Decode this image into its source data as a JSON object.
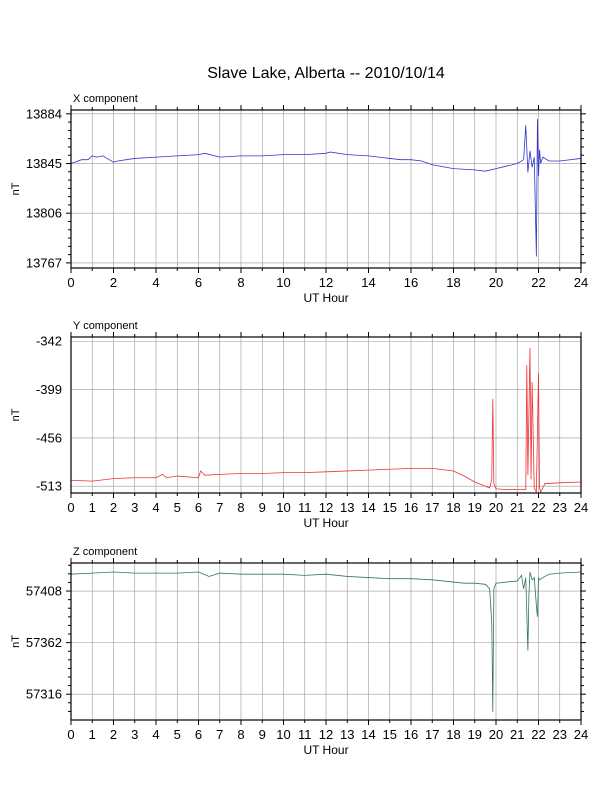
{
  "title": "Slave Lake, Alberta -- 2010/10/14",
  "chart_data": [
    {
      "type": "line",
      "title": "X component",
      "xlabel": "UT Hour",
      "ylabel": "nT",
      "xlim": [
        0,
        24
      ],
      "ylim": [
        13763,
        13887
      ],
      "xticks": [
        0,
        2,
        4,
        6,
        8,
        10,
        12,
        14,
        16,
        18,
        20,
        22,
        24
      ],
      "yticks": [
        13767,
        13806,
        13845,
        13884
      ],
      "grid": true,
      "series": [
        {
          "color": "#3333cc",
          "x": [
            0,
            0.5,
            0.8,
            1.0,
            1.2,
            1.5,
            1.8,
            2.0,
            2.2,
            3.0,
            4.0,
            5.0,
            6.0,
            6.3,
            7.0,
            8.0,
            9.0,
            10.0,
            11.0,
            12.0,
            12.2,
            13.0,
            14.0,
            15.0,
            15.5,
            16.0,
            16.5,
            17.0,
            18.0,
            19.0,
            19.5,
            20.0,
            20.5,
            21.0,
            21.3,
            21.4,
            21.5,
            21.6,
            21.7,
            21.8,
            21.9,
            21.95,
            22.0,
            22.05,
            22.1,
            22.2,
            22.5,
            23.0,
            24.0
          ],
          "values": [
            13845,
            13848,
            13848,
            13851,
            13850,
            13851,
            13848,
            13846,
            13847,
            13849,
            13850,
            13851,
            13852,
            13853,
            13850,
            13851,
            13851,
            13852,
            13852,
            13853,
            13854,
            13852,
            13851,
            13849,
            13848,
            13848,
            13847,
            13844,
            13841,
            13840,
            13839,
            13841,
            13843,
            13845,
            13848,
            13875,
            13838,
            13855,
            13842,
            13850,
            13772,
            13880,
            13835,
            13856,
            13845,
            13850,
            13847,
            13847,
            13849
          ]
        }
      ]
    },
    {
      "type": "line",
      "title": "Y component",
      "xlabel": "UT Hour",
      "ylabel": "nT",
      "xlim": [
        0,
        24
      ],
      "ylim": [
        -521,
        -337
      ],
      "xticks": [
        0,
        1,
        2,
        3,
        4,
        5,
        6,
        7,
        8,
        9,
        10,
        11,
        12,
        13,
        14,
        15,
        16,
        17,
        18,
        19,
        20,
        21,
        22,
        23,
        24
      ],
      "yticks": [
        -342,
        -399,
        -456,
        -513
      ],
      "grid": true,
      "series": [
        {
          "color": "#ee3333",
          "x": [
            0,
            1.0,
            2.0,
            3.0,
            4.0,
            4.3,
            4.5,
            5.0,
            6.0,
            6.1,
            6.3,
            7.0,
            8.0,
            9.0,
            10.0,
            11.0,
            12.0,
            13.0,
            14.0,
            15.0,
            16.0,
            17.0,
            18.0,
            18.5,
            19.0,
            19.5,
            19.7,
            19.8,
            19.85,
            19.9,
            20.0,
            20.5,
            21.0,
            21.4,
            21.45,
            21.5,
            21.6,
            21.65,
            21.7,
            21.8,
            21.9,
            22.0,
            22.05,
            22.1,
            22.3,
            23.0,
            24.0
          ],
          "values": [
            -506,
            -507,
            -504,
            -503,
            -503,
            -499,
            -503,
            -501,
            -503,
            -495,
            -500,
            -499,
            -498,
            -498,
            -497,
            -497,
            -496,
            -495,
            -494,
            -493,
            -492,
            -492,
            -495,
            -501,
            -508,
            -513,
            -515,
            -505,
            -410,
            -510,
            -516,
            -517,
            -517,
            -517,
            -370,
            -500,
            -350,
            -505,
            -390,
            -515,
            -520,
            -380,
            -515,
            -520,
            -510,
            -509,
            -508
          ]
        }
      ]
    },
    {
      "type": "line",
      "title": "Z component",
      "xlabel": "UT Hour",
      "ylabel": "nT",
      "xlim": [
        0,
        24
      ],
      "ylim": [
        57293,
        57433
      ],
      "xticks": [
        0,
        1,
        2,
        3,
        4,
        5,
        6,
        7,
        8,
        9,
        10,
        11,
        12,
        13,
        14,
        15,
        16,
        17,
        18,
        19,
        20,
        21,
        22,
        23,
        24
      ],
      "yticks": [
        57316,
        57362,
        57408
      ],
      "grid": true,
      "series": [
        {
          "color": "#337755",
          "x": [
            0,
            1.0,
            2.0,
            3.0,
            4.0,
            5.0,
            6.0,
            6.5,
            7.0,
            8.0,
            9.0,
            10.0,
            11.0,
            12.0,
            13.0,
            14.0,
            15.0,
            16.0,
            17.0,
            18.0,
            18.5,
            19.0,
            19.5,
            19.7,
            19.8,
            19.85,
            19.9,
            20.0,
            20.5,
            21.0,
            21.2,
            21.3,
            21.4,
            21.5,
            21.55,
            21.6,
            21.7,
            21.8,
            21.9,
            21.95,
            22.0,
            22.05,
            22.2,
            22.5,
            23.0,
            24.0
          ],
          "values": [
            57423,
            57424,
            57425,
            57424,
            57424,
            57424,
            57425,
            57421,
            57424,
            57423,
            57423,
            57423,
            57422,
            57423,
            57421,
            57420,
            57419,
            57419,
            57418,
            57416,
            57415,
            57415,
            57414,
            57410,
            57380,
            57300,
            57410,
            57415,
            57416,
            57417,
            57422,
            57410,
            57420,
            57355,
            57405,
            57425,
            57418,
            57420,
            57395,
            57385,
            57420,
            57418,
            57420,
            57423,
            57424,
            57425
          ]
        }
      ]
    }
  ]
}
